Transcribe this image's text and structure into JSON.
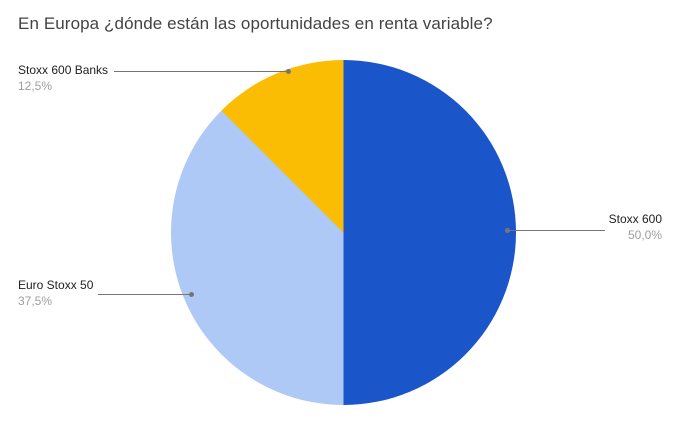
{
  "chart_data": {
    "type": "pie",
    "title": "En Europa ¿dónde están las oportunidades en renta variable?",
    "direction": "clockwise",
    "start_angle_deg": 0,
    "legend_position": "callout-labels",
    "background_color": "#FFFFFF",
    "slices": [
      {
        "label": "Stoxx 600",
        "value": 50.0,
        "percent_label": "50,0%",
        "color": "#1A56C9"
      },
      {
        "label": "Euro Stoxx 50",
        "value": 37.5,
        "percent_label": "37,5%",
        "color": "#AEC9F5"
      },
      {
        "label": "Stoxx 600 Banks",
        "value": 12.5,
        "percent_label": "12,5%",
        "color": "#FBBC04"
      }
    ]
  }
}
